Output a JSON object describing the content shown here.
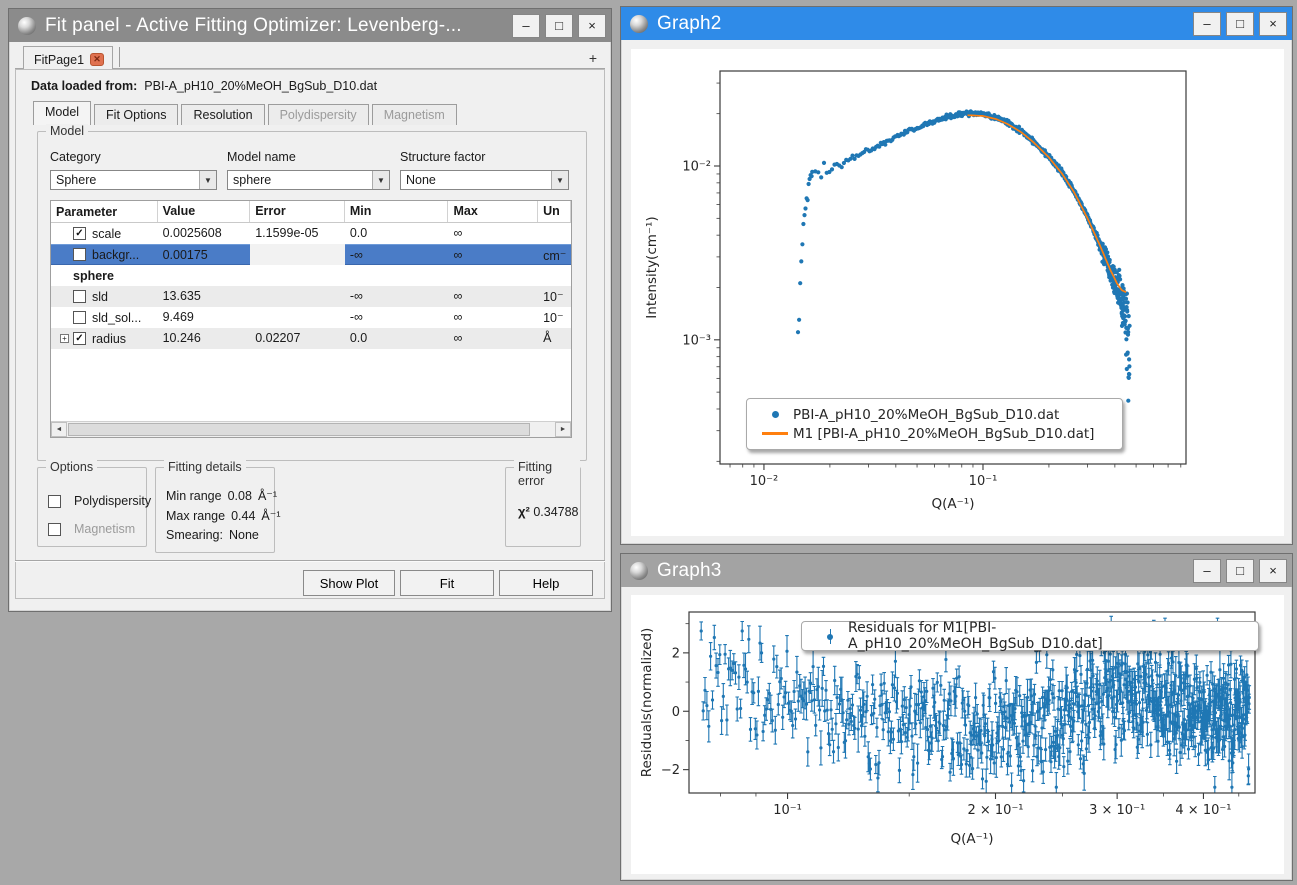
{
  "icons": {
    "minimize": "–",
    "maximize": "□",
    "close": "×",
    "tab_close": "✕",
    "add_tab": "+",
    "combo_arrow": "▼",
    "check": "✓",
    "expand": "+",
    "scroll_left": "◄",
    "scroll_right": "►"
  },
  "colors": {
    "active_title": "#2f8be8",
    "inactive_title": "#8b8b8b",
    "selection": "#4a7cc7",
    "data_blue": "#1f77b4",
    "model_orange": "#ff7f0e"
  },
  "fit_panel": {
    "title": "Fit panel - Active Fitting Optimizer: Levenberg-...",
    "page_tab": {
      "label": "FitPage1"
    },
    "data_loaded_label": "Data loaded from:",
    "data_loaded_value": "PBI-A_pH10_20%MeOH_BgSub_D10.dat",
    "tabs": [
      {
        "label": "Model",
        "active": true
      },
      {
        "label": "Fit Options"
      },
      {
        "label": "Resolution"
      },
      {
        "label": "Polydispersity",
        "disabled": true
      },
      {
        "label": "Magnetism",
        "disabled": true
      }
    ],
    "model_box": {
      "title": "Model",
      "category_label": "Category",
      "category_value": "Sphere",
      "model_name_label": "Model name",
      "model_name_value": "sphere",
      "structure_label": "Structure factor",
      "structure_value": "None"
    },
    "table": {
      "headers": [
        "Parameter",
        "Value",
        "Error",
        "Min",
        "Max",
        "Un"
      ],
      "rows": [
        {
          "name": "scale",
          "checked": true,
          "value": "0.0025608",
          "error": "1.1599e-05",
          "min": "0.0",
          "max": "∞",
          "units": ""
        },
        {
          "name": "backgr...",
          "checked": false,
          "selected": true,
          "value": "0.00175",
          "error": "",
          "min": "-∞",
          "max": "∞",
          "units": "cm⁻"
        },
        {
          "name": "sphere",
          "group": true
        },
        {
          "name": "sld",
          "checked": false,
          "value": "13.635",
          "error": "",
          "min": "-∞",
          "max": "∞",
          "units": "10⁻"
        },
        {
          "name": "sld_sol...",
          "checked": false,
          "value": "9.469",
          "error": "",
          "min": "-∞",
          "max": "∞",
          "units": "10⁻"
        },
        {
          "name": "radius",
          "checked": true,
          "expandable": true,
          "value": "10.246",
          "error": "0.02207",
          "min": "0.0",
          "max": "∞",
          "units": "Å"
        }
      ]
    },
    "options_box": {
      "title": "Options",
      "items": [
        {
          "label": "Polydispersity",
          "checked": false
        },
        {
          "label": "Magnetism",
          "checked": false,
          "disabled": true
        }
      ]
    },
    "fitting_details": {
      "title": "Fitting details",
      "min_label": "Min range",
      "min_value": "0.08",
      "min_unit": "Å⁻¹",
      "max_label": "Max range",
      "max_value": "0.44",
      "max_unit": "Å⁻¹",
      "smear_label": "Smearing:",
      "smear_value": "None"
    },
    "fitting_error": {
      "title": "Fitting error",
      "chi_label": "χ²",
      "chi_value": "0.34788"
    },
    "buttons": {
      "show_plot": "Show Plot",
      "fit": "Fit",
      "help": "Help"
    }
  },
  "graph2": {
    "title": "Graph2"
  },
  "graph3": {
    "title": "Graph3"
  },
  "chart_data": [
    {
      "id": "g2",
      "type": "scatter",
      "xlabel": "Q(A⁻¹)",
      "ylabel": "Intensity(cm⁻¹)",
      "xscale": "log",
      "yscale": "log",
      "xlim": [
        0.0063,
        0.845
      ],
      "ylim": [
        0.000193,
        0.0352
      ],
      "xticks": [
        {
          "v": 0.01,
          "label": "10⁻²"
        },
        {
          "v": 0.1,
          "label": "10⁻¹"
        }
      ],
      "yticks": [
        {
          "v": 0.01,
          "label": "10⁻²"
        },
        {
          "v": 0.001,
          "label": "10⁻³"
        }
      ],
      "xminor": [
        0.007,
        0.008,
        0.009,
        0.02,
        0.03,
        0.04,
        0.05,
        0.06,
        0.07,
        0.08,
        0.09,
        0.2,
        0.3,
        0.4,
        0.5,
        0.6,
        0.7,
        0.8
      ],
      "yminor": [
        0.0002,
        0.0003,
        0.0004,
        0.0005,
        0.0006,
        0.0007,
        0.0008,
        0.0009,
        0.002,
        0.003,
        0.004,
        0.005,
        0.006,
        0.007,
        0.008,
        0.009,
        0.02,
        0.03
      ],
      "legend": [
        {
          "label": "PBI-A_pH10_20%MeOH_BgSub_D10.dat",
          "marker": "dot",
          "color": "#1f77b4"
        },
        {
          "label": "M1 [PBI-A_pH10_20%MeOH_BgSub_D10.dat]",
          "marker": "line",
          "color": "#ff7f0e"
        }
      ],
      "anchors_runup": [
        [
          0.0143,
          0.00115
        ],
        [
          0.0144,
          0.00125
        ],
        [
          0.0145,
          0.00135
        ],
        [
          0.0146,
          0.0021
        ],
        [
          0.0147,
          0.0026
        ],
        [
          0.0149,
          0.0033
        ],
        [
          0.0151,
          0.0042
        ],
        [
          0.0153,
          0.0052
        ],
        [
          0.0155,
          0.0062
        ],
        [
          0.0158,
          0.0072
        ],
        [
          0.0161,
          0.008
        ],
        [
          0.0165,
          0.0086
        ]
      ],
      "anchors_main": [
        [
          0.0168,
          0.0088
        ],
        [
          0.018,
          0.0091
        ],
        [
          0.02,
          0.0097
        ],
        [
          0.023,
          0.0105
        ],
        [
          0.027,
          0.0115
        ],
        [
          0.032,
          0.0128
        ],
        [
          0.04,
          0.0147
        ],
        [
          0.05,
          0.0166
        ],
        [
          0.06,
          0.0181
        ],
        [
          0.07,
          0.0192
        ],
        [
          0.08,
          0.0199
        ],
        [
          0.09,
          0.0201
        ],
        [
          0.1,
          0.0198
        ],
        [
          0.115,
          0.0189
        ],
        [
          0.13,
          0.0177
        ],
        [
          0.15,
          0.0158
        ],
        [
          0.17,
          0.0139
        ],
        [
          0.2,
          0.0113
        ],
        [
          0.23,
          0.0091
        ],
        [
          0.26,
          0.0072
        ],
        [
          0.3,
          0.0051
        ],
        [
          0.34,
          0.0036
        ],
        [
          0.38,
          0.0025
        ],
        [
          0.41,
          0.00195
        ],
        [
          0.44,
          0.0015
        ],
        [
          0.455,
          0.0011
        ],
        [
          0.467,
          0.00075
        ]
      ],
      "anchors_model": [
        [
          0.085,
          0.0196
        ],
        [
          0.1,
          0.0194
        ],
        [
          0.115,
          0.0186
        ],
        [
          0.13,
          0.0174
        ],
        [
          0.15,
          0.0156
        ],
        [
          0.17,
          0.0137
        ],
        [
          0.2,
          0.0112
        ],
        [
          0.23,
          0.009
        ],
        [
          0.26,
          0.0071
        ],
        [
          0.3,
          0.005
        ],
        [
          0.34,
          0.00355
        ],
        [
          0.38,
          0.00255
        ],
        [
          0.41,
          0.0021
        ],
        [
          0.43,
          0.00193
        ],
        [
          0.45,
          0.00188
        ]
      ],
      "series": [
        {
          "kind": "scatter",
          "color": "#1f77b4",
          "dot": 4.2,
          "seed": 42,
          "segments": [
            {
              "n": 14,
              "qmin": 0.0143,
              "qmax": 0.0165,
              "sigma": 0.04,
              "anchors": "anchors_runup"
            },
            {
              "n": 780,
              "qmin": 0.0166,
              "qmax": 0.444,
              "sigma": "auto",
              "base": 0.016,
              "lowq_q": 0.024,
              "lowq_sigma": 0.045,
              "highq_q": 0.32,
              "highq_slope": 1.1,
              "anchors": "anchors_main"
            },
            {
              "n": 30,
              "qmin": 0.445,
              "qmax": 0.467,
              "sigma": 0.33,
              "anchors": "anchors_main"
            }
          ]
        },
        {
          "kind": "line",
          "color": "#ff7f0e",
          "width": 1.7,
          "anchors": "anchors_model"
        }
      ]
    },
    {
      "id": "g3",
      "type": "errorbar",
      "xlabel": "Q(A⁻¹)",
      "ylabel": "Residuals(normalized)",
      "xscale": "log",
      "yscale": "linear",
      "xlim": [
        0.072,
        0.475
      ],
      "ylim": [
        -2.8,
        3.4
      ],
      "xticks": [
        {
          "v": 0.1,
          "label": "10⁻¹"
        },
        {
          "v": 0.2,
          "label": "2 × 10⁻¹"
        },
        {
          "v": 0.3,
          "label": "3 × 10⁻¹"
        },
        {
          "v": 0.4,
          "label": "4 × 10⁻¹"
        }
      ],
      "yticks": [
        {
          "v": 2,
          "label": "2"
        },
        {
          "v": 0,
          "label": "0"
        },
        {
          "v": -2,
          "label": "−2"
        }
      ],
      "xminor": [
        0.08,
        0.09,
        0.15,
        0.25,
        0.35,
        0.45
      ],
      "yminor": [
        3,
        1,
        -1
      ],
      "legend": [
        {
          "label": "Residuals for M1[PBI-A_pH10_20%MeOH_BgSub_D10.dat]",
          "marker": "errorbar",
          "color": "#1f77b4"
        }
      ],
      "anchors_centers": [
        [
          0.075,
          0.85
        ],
        [
          0.09,
          0.7
        ],
        [
          0.11,
          0.42
        ],
        [
          0.13,
          0.1
        ],
        [
          0.15,
          -0.25
        ],
        [
          0.17,
          -0.5
        ],
        [
          0.19,
          -0.63
        ],
        [
          0.21,
          -0.62
        ],
        [
          0.23,
          -0.45
        ],
        [
          0.25,
          -0.15
        ],
        [
          0.27,
          0.15
        ],
        [
          0.29,
          0.38
        ],
        [
          0.31,
          0.5
        ],
        [
          0.33,
          0.5
        ],
        [
          0.35,
          0.35
        ],
        [
          0.37,
          0.15
        ],
        [
          0.4,
          -0.1
        ],
        [
          0.43,
          -0.18
        ],
        [
          0.45,
          -0.12
        ],
        [
          0.466,
          0.05
        ]
      ],
      "series": [
        {
          "kind": "errorbar",
          "color": "#1f77b4",
          "seed": 7,
          "n": 820,
          "qmin": 0.075,
          "qmax": 0.466,
          "noise": 0.88,
          "clamp": 2.6,
          "ebar": 0.3,
          "ebar_jitter": 0.15,
          "anchors": "anchors_centers"
        }
      ]
    }
  ]
}
